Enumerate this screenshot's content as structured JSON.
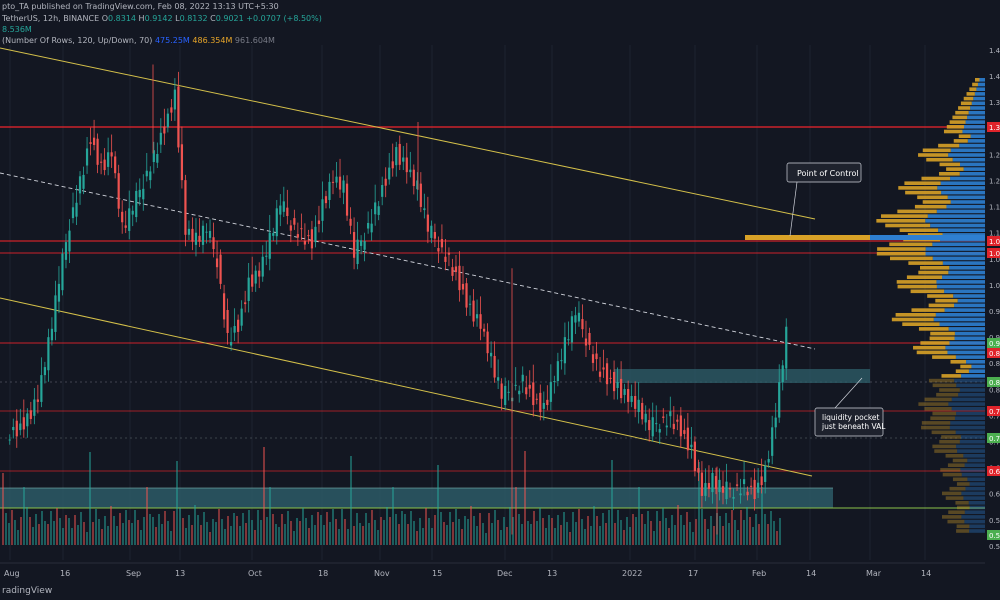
{
  "header": {
    "publisher_line": "pto_TA published on TradingView.com, Feb 08, 2022 13:13 UTC+5:30",
    "symbol_line": "TetherUS, 12h, BINANCE",
    "o_label": "O",
    "o": "0.8314",
    "h_label": "H",
    "h": "0.9142",
    "l_label": "L",
    "l": "0.8132",
    "c_label": "C",
    "c": "0.9021",
    "change": "+0.0707 (+8.50%)",
    "volume": "8.536M",
    "vrvp_label": "(Number Of Rows, 120, Up/Down, 70)",
    "vrvp_up": "475.25M",
    "vrvp_down": "486.354M",
    "vrvp_total": "961.604M"
  },
  "annotations": {
    "poc": "Point of Control",
    "liquidity": "liquidity pocket just beneath VAL"
  },
  "footer": {
    "logo": "radingView"
  },
  "colors": {
    "background": "#131722",
    "bull": "#26a69a",
    "bear": "#ef5350",
    "channel": "#d4c04a",
    "level": "#e0242b",
    "profile_up": "#2e7fd1",
    "profile_down": "#d9a227",
    "zone": "#2d5b66"
  },
  "chart_data": {
    "type": "candlestick",
    "title": "TetherUS, 12h, BINANCE",
    "x_tick_labels": [
      "Aug",
      "16",
      "Sep",
      "13",
      "Oct",
      "18",
      "Nov",
      "15",
      "Dec",
      "13",
      "2022",
      "17",
      "Feb",
      "14",
      "Mar",
      "14"
    ],
    "y_tick_labels": [
      "1.4",
      "1.4",
      "1.3",
      "1.3",
      "1.2",
      "1.2",
      "1.1",
      "1.1",
      "1.0",
      "1.0",
      "0.9",
      "0.9",
      "0.8",
      "0.8",
      "0.7",
      "0.7",
      "0.6",
      "0.6",
      "0.5",
      "0.5"
    ],
    "price_tags": [
      {
        "label": "1.3",
        "style": "red"
      },
      {
        "label": "1.0",
        "style": "red"
      },
      {
        "label": "1.0",
        "style": "red"
      },
      {
        "label": "0.9",
        "style": "green"
      },
      {
        "label": "0.8",
        "style": "red"
      },
      {
        "label": "0.8",
        "style": "green"
      },
      {
        "label": "0.7",
        "style": "red"
      },
      {
        "label": "0.7",
        "style": "green"
      },
      {
        "label": "0.6",
        "style": "red"
      },
      {
        "label": "0.5",
        "style": "green"
      }
    ],
    "ylim": [
      0.5,
      1.48
    ],
    "candles_approx_close": [
      0.72,
      0.74,
      0.78,
      0.88,
      1.0,
      1.12,
      1.2,
      1.28,
      1.22,
      1.25,
      1.1,
      1.14,
      1.2,
      1.25,
      1.3,
      1.36,
      1.1,
      1.08,
      1.1,
      1.05,
      0.9,
      0.92,
      1.0,
      1.02,
      1.08,
      1.15,
      1.12,
      1.1,
      1.08,
      1.15,
      1.2,
      1.18,
      1.05,
      1.1,
      1.15,
      1.2,
      1.25,
      1.22,
      1.18,
      1.1,
      1.08,
      1.05,
      1.0,
      0.95,
      0.92,
      0.85,
      0.78,
      0.8,
      0.82,
      0.78,
      0.76,
      0.82,
      0.88,
      0.94,
      0.9,
      0.85,
      0.82,
      0.8,
      0.78,
      0.76,
      0.72,
      0.74,
      0.75,
      0.72,
      0.68,
      0.6,
      0.62,
      0.6,
      0.61,
      0.62,
      0.6,
      0.64,
      0.75,
      0.9
    ]
  }
}
